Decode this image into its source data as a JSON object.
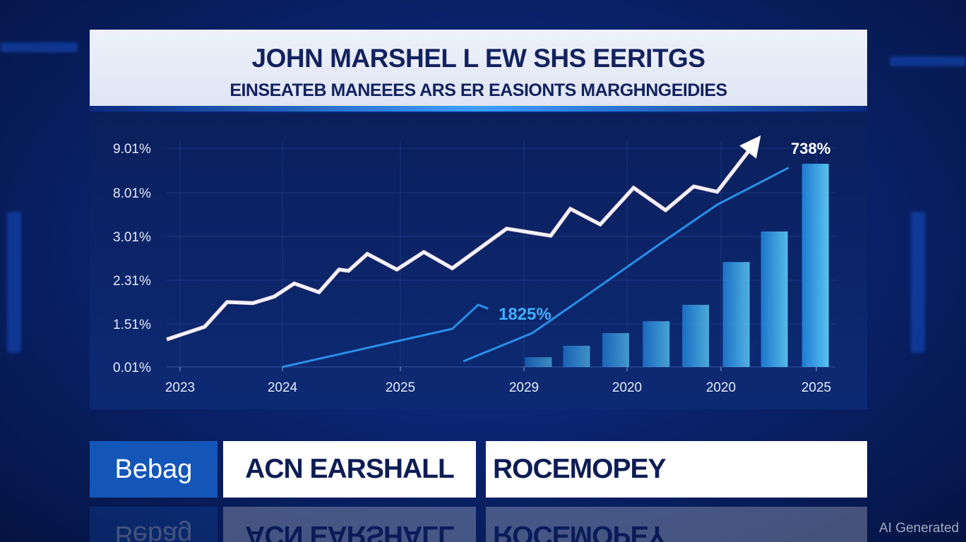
{
  "header": {
    "title": "JOHN MARSHEL  L EW SHS EERITGS",
    "subtitle": "EINSEATEB MANEEES ARS ER EASIONTS MARGHNGEIDIES"
  },
  "chart_data": {
    "type": "bar",
    "title": "",
    "xlabel": "",
    "ylabel": "",
    "categories": [
      "2023",
      "2024",
      "2025",
      "2029",
      "2020",
      "2020",
      "2025"
    ],
    "y_ticks": [
      0.01,
      1.51,
      2.31,
      3.01,
      8.01,
      9.01
    ],
    "y_tick_labels": [
      "0.01%",
      "1.51%",
      "2.31%",
      "3.01%",
      "8.01%",
      "9.01%"
    ],
    "ylim": [
      0.01,
      9.01
    ],
    "grid": true,
    "legend": "none",
    "series": [
      {
        "type": "line",
        "color": "#f2f2f8",
        "arrow": true,
        "x": [
          -0.13,
          0.24,
          0.46,
          0.71,
          0.92,
          1.1,
          1.31,
          1.48,
          1.56,
          1.72,
          1.97,
          2.19,
          2.42,
          2.86,
          3.26,
          3.45,
          3.74,
          4.07,
          4.41,
          4.71,
          4.96,
          5.35
        ],
        "y": [
          0.97,
          1.41,
          1.91,
          1.89,
          2.01,
          2.25,
          2.09,
          2.48,
          2.46,
          2.73,
          2.48,
          2.76,
          2.5,
          3.9,
          3.09,
          6.16,
          4.38,
          8.12,
          6.01,
          8.15,
          8.03,
          9.11
        ]
      },
      {
        "type": "line",
        "color": "#2a8fe8",
        "x": [
          1.0,
          2.42,
          2.63,
          2.71
        ],
        "y": [
          0.01,
          1.34,
          1.86,
          1.79
        ]
      },
      {
        "type": "curve",
        "color": "#2a8fe8",
        "x": [
          2.51,
          3.08,
          3.69,
          4.35,
          4.96,
          5.71
        ],
        "y": [
          0.21,
          1.19,
          2.14,
          2.89,
          6.64,
          8.57
        ]
      },
      {
        "type": "bar",
        "colors": [
          "#1f7fd8",
          "#5ccaf5"
        ],
        "x": [
          3.14,
          3.51,
          3.89,
          4.31,
          4.73,
          5.16,
          5.56,
          5.99
        ],
        "y": [
          0.35,
          0.75,
          1.19,
          1.56,
          1.86,
          2.6,
          3.57,
          8.66
        ]
      }
    ],
    "annotations": [
      {
        "text": "1825%",
        "color": "#3fb0ff"
      },
      {
        "text": "738%",
        "color": "#ffffff"
      }
    ]
  },
  "banner": {
    "logo": "Bebag",
    "name": "ACN EARSHALL",
    "topic": "ROCEMOPEY"
  },
  "watermark": "AI Generated"
}
